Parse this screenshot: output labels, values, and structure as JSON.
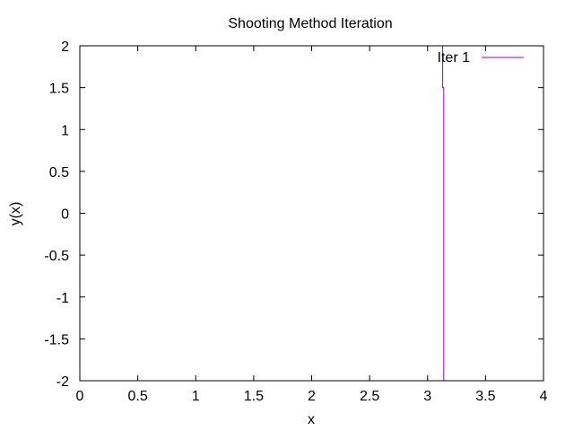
{
  "chart_data": {
    "type": "line",
    "title": "Shooting Method Iteration",
    "xlabel": "x",
    "ylabel": "y(x)",
    "xlim": [
      0,
      4
    ],
    "ylim": [
      -2,
      2
    ],
    "xticks": [
      0,
      0.5,
      1,
      1.5,
      2,
      2.5,
      3,
      3.5,
      4
    ],
    "yticks": [
      -2,
      -1.5,
      -1,
      -0.5,
      0,
      0.5,
      1,
      1.5,
      2
    ],
    "xtick_labels": [
      "0",
      "0.5",
      "1",
      "1.5",
      "2",
      "2.5",
      "3",
      "3.5",
      "4"
    ],
    "ytick_labels": [
      "-2",
      "-1.5",
      "-1",
      "-0.5",
      "0",
      "0.5",
      "1",
      "1.5",
      "2"
    ],
    "grid": false,
    "legend_position": "top-right",
    "series": [
      {
        "name": "Iter 1",
        "color": "#9400d3",
        "points": [
          [
            3.13,
            2
          ],
          [
            3.13,
            1.5
          ],
          [
            3.14,
            1.5
          ],
          [
            3.14,
            -2
          ]
        ]
      }
    ]
  }
}
